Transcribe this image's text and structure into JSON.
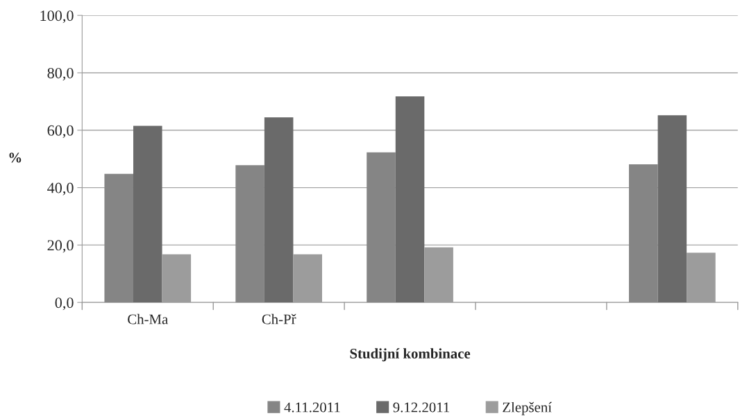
{
  "chart_data": {
    "type": "bar",
    "xlabel": "Studijní kombinace",
    "ylabel": "%",
    "categories": [
      "Ch-Ma",
      "Ch-Př",
      null,
      null,
      null
    ],
    "series": [
      {
        "name": "4.11.2011",
        "color": "#858585",
        "values": [
          44.8,
          47.8,
          52.3,
          null,
          48.1
        ]
      },
      {
        "name": "9.12.2011",
        "color": "#6a6a6a",
        "values": [
          61.5,
          64.5,
          71.8,
          null,
          65.2
        ]
      },
      {
        "name": "Zlepšení",
        "color": "#9c9c9c",
        "values": [
          16.8,
          16.8,
          19.2,
          null,
          17.3
        ]
      }
    ],
    "ylim": [
      0,
      100
    ],
    "yticks": [
      {
        "value": 0,
        "label": "0,0"
      },
      {
        "value": 20,
        "label": "20,0"
      },
      {
        "value": 40,
        "label": "40,0"
      },
      {
        "value": 60,
        "label": "60,0"
      },
      {
        "value": 80,
        "label": "80,0"
      },
      {
        "value": 100,
        "label": "100,0"
      }
    ],
    "grid": "y",
    "legend": "bottom"
  }
}
